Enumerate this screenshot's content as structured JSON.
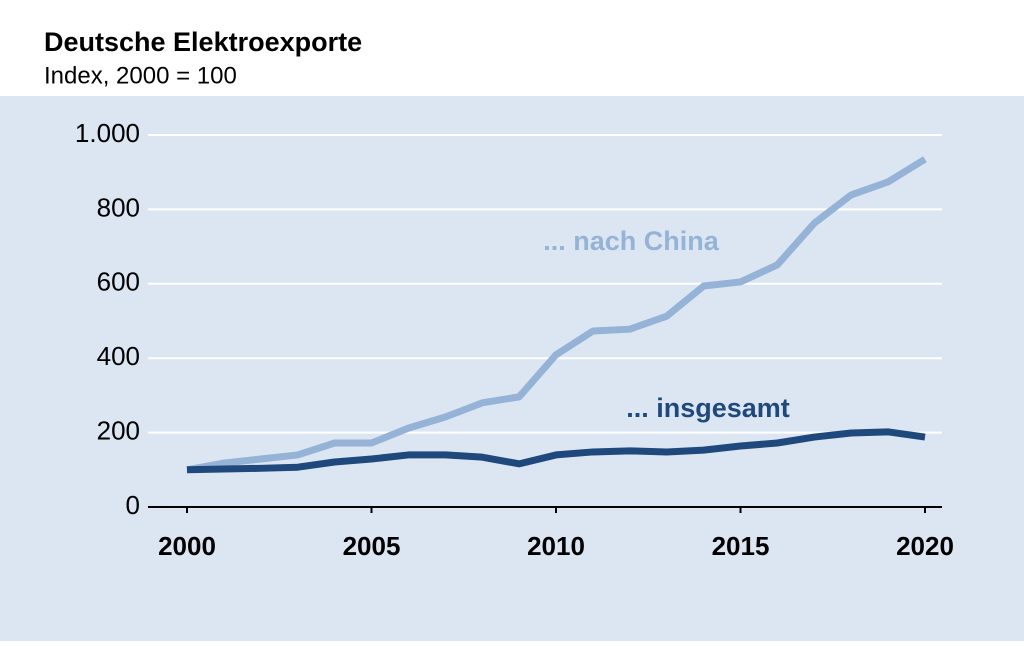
{
  "chart_data": {
    "type": "line",
    "title": "Deutsche Elektroexporte",
    "subtitle": "Index, 2000 = 100",
    "x": [
      2000,
      2001,
      2002,
      2003,
      2004,
      2005,
      2006,
      2007,
      2008,
      2009,
      2010,
      2011,
      2012,
      2013,
      2014,
      2015,
      2016,
      2017,
      2018,
      2019,
      2020
    ],
    "series": [
      {
        "name": "... nach China",
        "color": "#95b3d7",
        "values": [
          100,
          118,
          129,
          140,
          172,
          172,
          212,
          242,
          280,
          296,
          409,
          473,
          478,
          513,
          594,
          605,
          651,
          763,
          839,
          874,
          935
        ]
      },
      {
        "name": "... insgesamt",
        "color": "#1f497d",
        "values": [
          100,
          102,
          104,
          107,
          121,
          129,
          140,
          140,
          134,
          116,
          140,
          148,
          151,
          148,
          153,
          164,
          172,
          188,
          199,
          202,
          188
        ]
      }
    ],
    "xlim": [
      2000,
      2020
    ],
    "xticks": [
      2000,
      2005,
      2010,
      2015,
      2020
    ],
    "ylim": [
      0,
      1000
    ],
    "yticks": [
      0,
      200,
      400,
      600,
      800,
      {
        "value": 1000,
        "label": "1.000"
      }
    ],
    "grid": true
  }
}
